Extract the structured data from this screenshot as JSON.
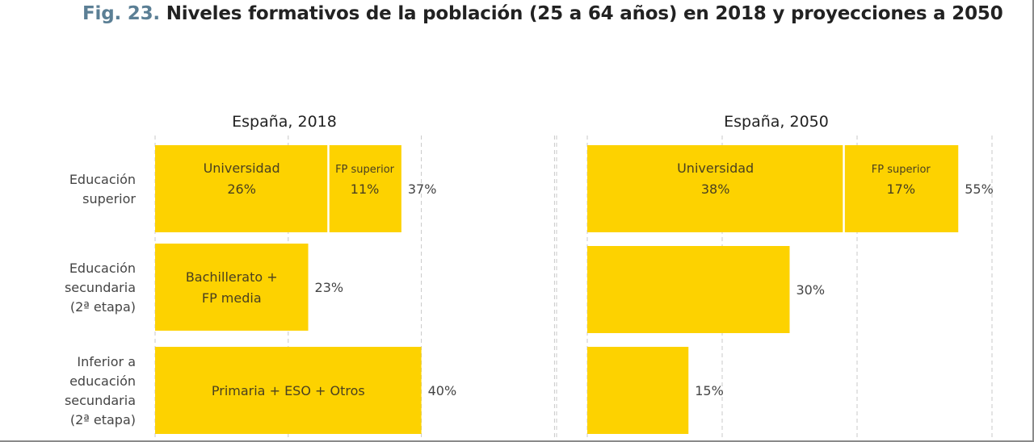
{
  "title": {
    "fig_label": "Fig. 23.",
    "text": " Niveles formativos de la población (25 a 64 años) en 2018 y proyecciones a 2050"
  },
  "colors": {
    "bar": "#fdd200",
    "fig_label": "#5b7f95",
    "grid": "#c8c8c8"
  },
  "chart_data": [
    {
      "type": "bar",
      "orientation": "horizontal",
      "stacked": true,
      "title": "España, 2018",
      "xlabel": "",
      "ylabel": "",
      "xlim": [
        0,
        60
      ],
      "grid": true,
      "gridlines_at": [
        0,
        20,
        40,
        60
      ],
      "categories": [
        [
          "Educación",
          "superior"
        ],
        [
          "Educación",
          "secundaria",
          "(2ª etapa)"
        ],
        [
          "Inferior a",
          "educación",
          "secundaria",
          "(2ª etapa)"
        ]
      ],
      "bars": [
        {
          "total": 37,
          "total_label": "37%",
          "segments": [
            {
              "name": "Universidad",
              "value": 26,
              "label_lines": [
                "Universidad",
                "26%"
              ]
            },
            {
              "name": "FP superior",
              "value": 11,
              "label_lines": [
                "FP superior",
                "11%"
              ],
              "small": true
            }
          ]
        },
        {
          "total": 23,
          "total_label": "23%",
          "segments": [
            {
              "name": "Bachillerato + FP media",
              "value": 23,
              "label_lines": [
                "Bachillerato +",
                "FP media"
              ]
            }
          ]
        },
        {
          "total": 40,
          "total_label": "40%",
          "segments": [
            {
              "name": "Primaria + ESO + Otros",
              "value": 40,
              "label_lines": [
                "Primaria + ESO + Otros"
              ]
            }
          ]
        }
      ]
    },
    {
      "type": "bar",
      "orientation": "horizontal",
      "stacked": true,
      "title": "España, 2050",
      "xlabel": "",
      "ylabel": "",
      "xlim": [
        0,
        60
      ],
      "grid": true,
      "gridlines_at": [
        0,
        20,
        40,
        60
      ],
      "categories": [
        [
          "Educación",
          "superior"
        ],
        [
          "Educación",
          "secundaria",
          "(2ª etapa)"
        ],
        [
          "Inferior a",
          "educación",
          "secundaria",
          "(2ª etapa)"
        ]
      ],
      "bars": [
        {
          "total": 55,
          "total_label": "55%",
          "segments": [
            {
              "name": "Universidad",
              "value": 38,
              "label_lines": [
                "Universidad",
                "38%"
              ]
            },
            {
              "name": "FP superior",
              "value": 17,
              "label_lines": [
                "FP superior",
                "17%"
              ],
              "small": true
            }
          ]
        },
        {
          "total": 30,
          "total_label": "30%",
          "segments": [
            {
              "name": "Bachillerato + FP media",
              "value": 30,
              "label_lines": []
            }
          ]
        },
        {
          "total": 15,
          "total_label": "15%",
          "segments": [
            {
              "name": "Primaria + ESO + Otros",
              "value": 15,
              "label_lines": []
            }
          ]
        }
      ]
    }
  ]
}
